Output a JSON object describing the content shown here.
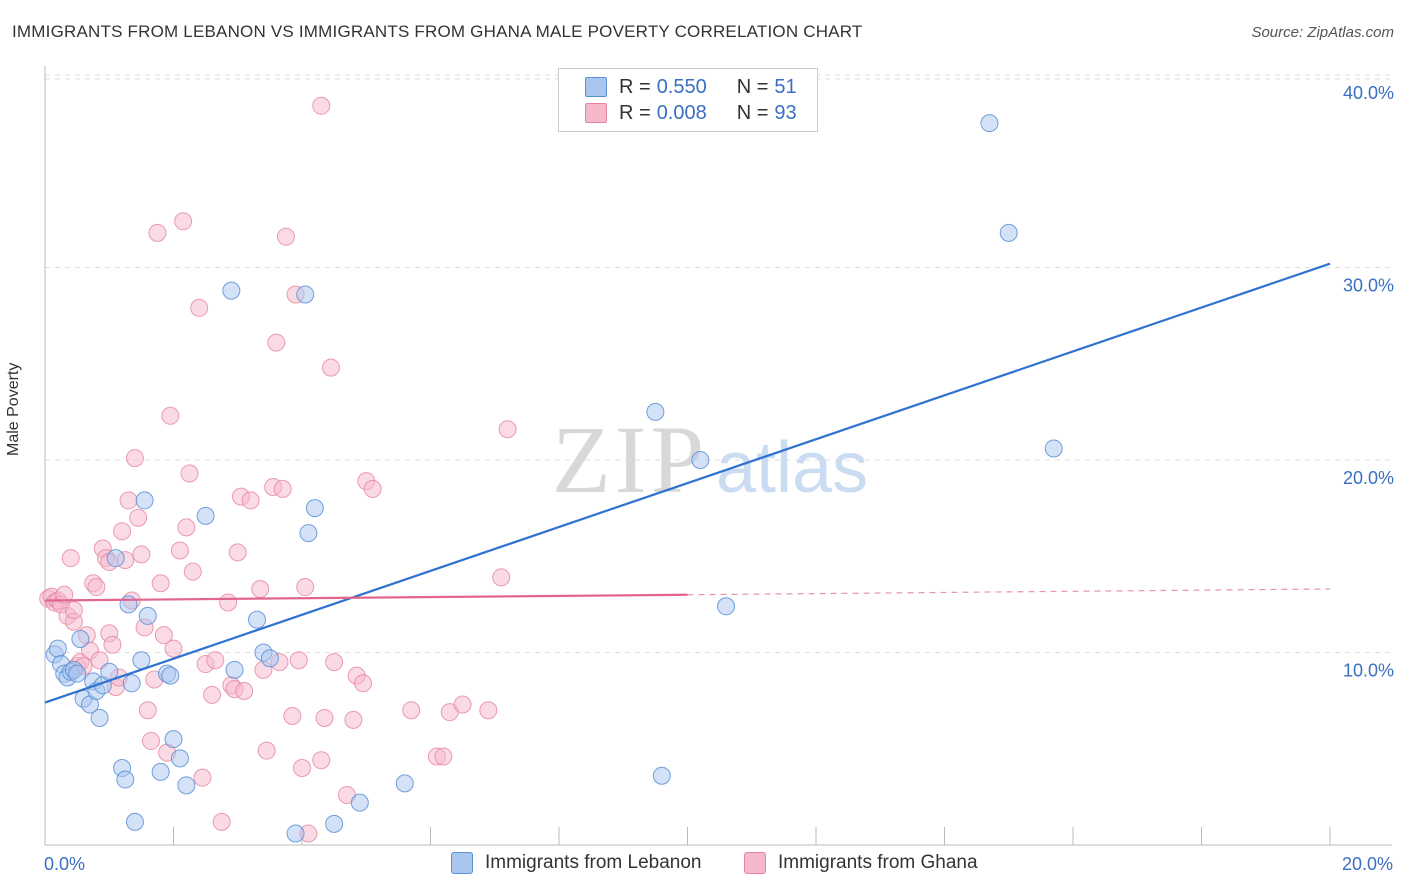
{
  "header": {
    "title": "IMMIGRANTS FROM LEBANON VS IMMIGRANTS FROM GHANA MALE POVERTY CORRELATION CHART",
    "source": "Source: ZipAtlas.com"
  },
  "watermark": {
    "zip": "ZIP",
    "atlas": "atlas"
  },
  "legend": {
    "rows": [
      {
        "r_label": "R = ",
        "r_value": "0.550",
        "n_label": "N = ",
        "n_value": "51"
      },
      {
        "r_label": "R = ",
        "r_value": "0.008",
        "n_label": "N = ",
        "n_value": "93"
      }
    ]
  },
  "bottom_legend": {
    "lebanon": "Immigrants from Lebanon",
    "ghana": "Immigrants from Ghana"
  },
  "colors": {
    "lebanon_fill": "#a9c6ef",
    "lebanon_stroke": "#5b8fd6",
    "lebanon_line": "#2f72cf",
    "ghana_fill": "#f5b8cb",
    "ghana_stroke": "#e6849f",
    "ghana_line": "#e0668e",
    "axis_label": "#3a6fc4",
    "grid": "#dddddd"
  },
  "chart_data": {
    "type": "scatter",
    "title": "IMMIGRANTS FROM LEBANON VS IMMIGRANTS FROM GHANA MALE POVERTY CORRELATION CHART",
    "xlabel": "",
    "ylabel": "Male Poverty",
    "xlim": [
      0,
      20
    ],
    "ylim": [
      0,
      40
    ],
    "x_tick_labels": [
      "0.0%",
      "20.0%"
    ],
    "y_ticks": [
      10,
      20,
      30,
      40
    ],
    "y_tick_labels": [
      "10.0%",
      "20.0%",
      "30.0%",
      "40.0%"
    ],
    "grid": true,
    "legend_position": "top-center",
    "series": [
      {
        "name": "Immigrants from Lebanon",
        "r": 0.55,
        "n": 51,
        "trend": {
          "x": [
            0,
            20
          ],
          "y": [
            7.4,
            30.2
          ]
        },
        "points": [
          [
            0.15,
            9.9
          ],
          [
            0.2,
            10.2
          ],
          [
            0.25,
            9.4
          ],
          [
            0.3,
            8.9
          ],
          [
            0.35,
            8.7
          ],
          [
            0.4,
            9.0
          ],
          [
            0.45,
            9.1
          ],
          [
            0.5,
            8.9
          ],
          [
            0.55,
            10.7
          ],
          [
            0.6,
            7.6
          ],
          [
            0.7,
            7.3
          ],
          [
            0.75,
            8.5
          ],
          [
            0.8,
            8.0
          ],
          [
            0.85,
            6.6
          ],
          [
            0.9,
            8.3
          ],
          [
            1.0,
            9.0
          ],
          [
            1.1,
            14.9
          ],
          [
            1.2,
            4.0
          ],
          [
            1.25,
            3.4
          ],
          [
            1.3,
            12.5
          ],
          [
            1.5,
            9.6
          ],
          [
            1.55,
            17.9
          ],
          [
            1.6,
            11.9
          ],
          [
            1.8,
            3.8
          ],
          [
            1.9,
            8.9
          ],
          [
            1.95,
            8.8
          ],
          [
            2.0,
            5.5
          ],
          [
            2.1,
            4.5
          ],
          [
            2.2,
            3.1
          ],
          [
            2.5,
            17.1
          ],
          [
            2.9,
            28.8
          ],
          [
            2.95,
            9.1
          ],
          [
            3.3,
            11.7
          ],
          [
            3.4,
            10.0
          ],
          [
            3.5,
            9.7
          ],
          [
            3.9,
            0.6
          ],
          [
            4.1,
            16.2
          ],
          [
            4.2,
            17.5
          ],
          [
            4.05,
            28.6
          ],
          [
            4.5,
            1.1
          ],
          [
            4.9,
            2.2
          ],
          [
            5.6,
            3.2
          ],
          [
            1.4,
            1.2
          ],
          [
            9.6,
            3.6
          ],
          [
            9.5,
            22.5
          ],
          [
            10.2,
            20.0
          ],
          [
            10.6,
            12.4
          ],
          [
            14.7,
            37.5
          ],
          [
            15.0,
            31.8
          ],
          [
            15.7,
            20.6
          ],
          [
            1.35,
            8.4
          ]
        ]
      },
      {
        "name": "Immigrants from Ghana",
        "r": 0.008,
        "n": 93,
        "trend": {
          "x": [
            0,
            10
          ],
          "y": [
            12.7,
            13.0
          ]
        },
        "trend_extension": {
          "x": [
            10,
            20
          ],
          "y": [
            13.0,
            13.3
          ]
        },
        "points": [
          [
            0.05,
            12.8
          ],
          [
            0.1,
            12.9
          ],
          [
            0.15,
            12.6
          ],
          [
            0.2,
            12.7
          ],
          [
            0.25,
            12.5
          ],
          [
            0.3,
            13.0
          ],
          [
            0.35,
            11.9
          ],
          [
            0.4,
            14.9
          ],
          [
            0.45,
            11.6
          ],
          [
            0.5,
            9.3
          ],
          [
            0.55,
            9.5
          ],
          [
            0.6,
            9.3
          ],
          [
            0.65,
            10.9
          ],
          [
            0.7,
            10.1
          ],
          [
            0.75,
            13.6
          ],
          [
            0.8,
            13.4
          ],
          [
            0.85,
            9.6
          ],
          [
            0.9,
            15.4
          ],
          [
            0.95,
            14.9
          ],
          [
            1.0,
            11.0
          ],
          [
            1.05,
            10.4
          ],
          [
            1.1,
            8.2
          ],
          [
            1.15,
            8.7
          ],
          [
            1.2,
            16.3
          ],
          [
            1.25,
            14.8
          ],
          [
            1.3,
            17.9
          ],
          [
            1.35,
            12.7
          ],
          [
            1.4,
            20.1
          ],
          [
            1.45,
            17.0
          ],
          [
            1.5,
            15.1
          ],
          [
            1.55,
            11.3
          ],
          [
            1.6,
            7.0
          ],
          [
            1.65,
            5.4
          ],
          [
            1.7,
            8.6
          ],
          [
            1.75,
            31.8
          ],
          [
            1.8,
            13.6
          ],
          [
            1.85,
            10.9
          ],
          [
            1.9,
            4.8
          ],
          [
            1.95,
            22.3
          ],
          [
            2.0,
            10.2
          ],
          [
            2.1,
            15.3
          ],
          [
            2.15,
            32.4
          ],
          [
            2.2,
            16.5
          ],
          [
            2.25,
            19.3
          ],
          [
            2.3,
            14.2
          ],
          [
            2.4,
            27.9
          ],
          [
            2.45,
            3.5
          ],
          [
            2.5,
            9.4
          ],
          [
            2.6,
            7.8
          ],
          [
            2.65,
            9.6
          ],
          [
            2.75,
            1.2
          ],
          [
            2.85,
            12.6
          ],
          [
            2.9,
            8.3
          ],
          [
            2.95,
            8.1
          ],
          [
            3.0,
            15.2
          ],
          [
            3.05,
            18.1
          ],
          [
            3.1,
            8.0
          ],
          [
            3.2,
            17.9
          ],
          [
            3.35,
            13.3
          ],
          [
            3.4,
            9.1
          ],
          [
            3.45,
            4.9
          ],
          [
            3.55,
            18.6
          ],
          [
            3.6,
            26.1
          ],
          [
            3.65,
            9.5
          ],
          [
            3.7,
            18.5
          ],
          [
            3.75,
            31.6
          ],
          [
            3.85,
            6.7
          ],
          [
            3.9,
            28.6
          ],
          [
            3.95,
            9.6
          ],
          [
            4.0,
            4.0
          ],
          [
            4.05,
            13.4
          ],
          [
            4.1,
            0.6
          ],
          [
            4.3,
            4.4
          ],
          [
            4.35,
            6.6
          ],
          [
            4.45,
            24.8
          ],
          [
            4.5,
            9.5
          ],
          [
            4.7,
            2.6
          ],
          [
            4.8,
            6.5
          ],
          [
            4.85,
            8.8
          ],
          [
            4.95,
            8.4
          ],
          [
            5.0,
            18.9
          ],
          [
            5.1,
            18.5
          ],
          [
            5.7,
            7.0
          ],
          [
            6.1,
            4.6
          ],
          [
            6.2,
            4.6
          ],
          [
            6.3,
            6.9
          ],
          [
            6.5,
            7.3
          ],
          [
            7.1,
            13.9
          ],
          [
            7.2,
            21.6
          ],
          [
            4.3,
            38.4
          ],
          [
            6.9,
            7.0
          ],
          [
            0.45,
            12.2
          ],
          [
            1.0,
            14.7
          ]
        ]
      }
    ]
  }
}
